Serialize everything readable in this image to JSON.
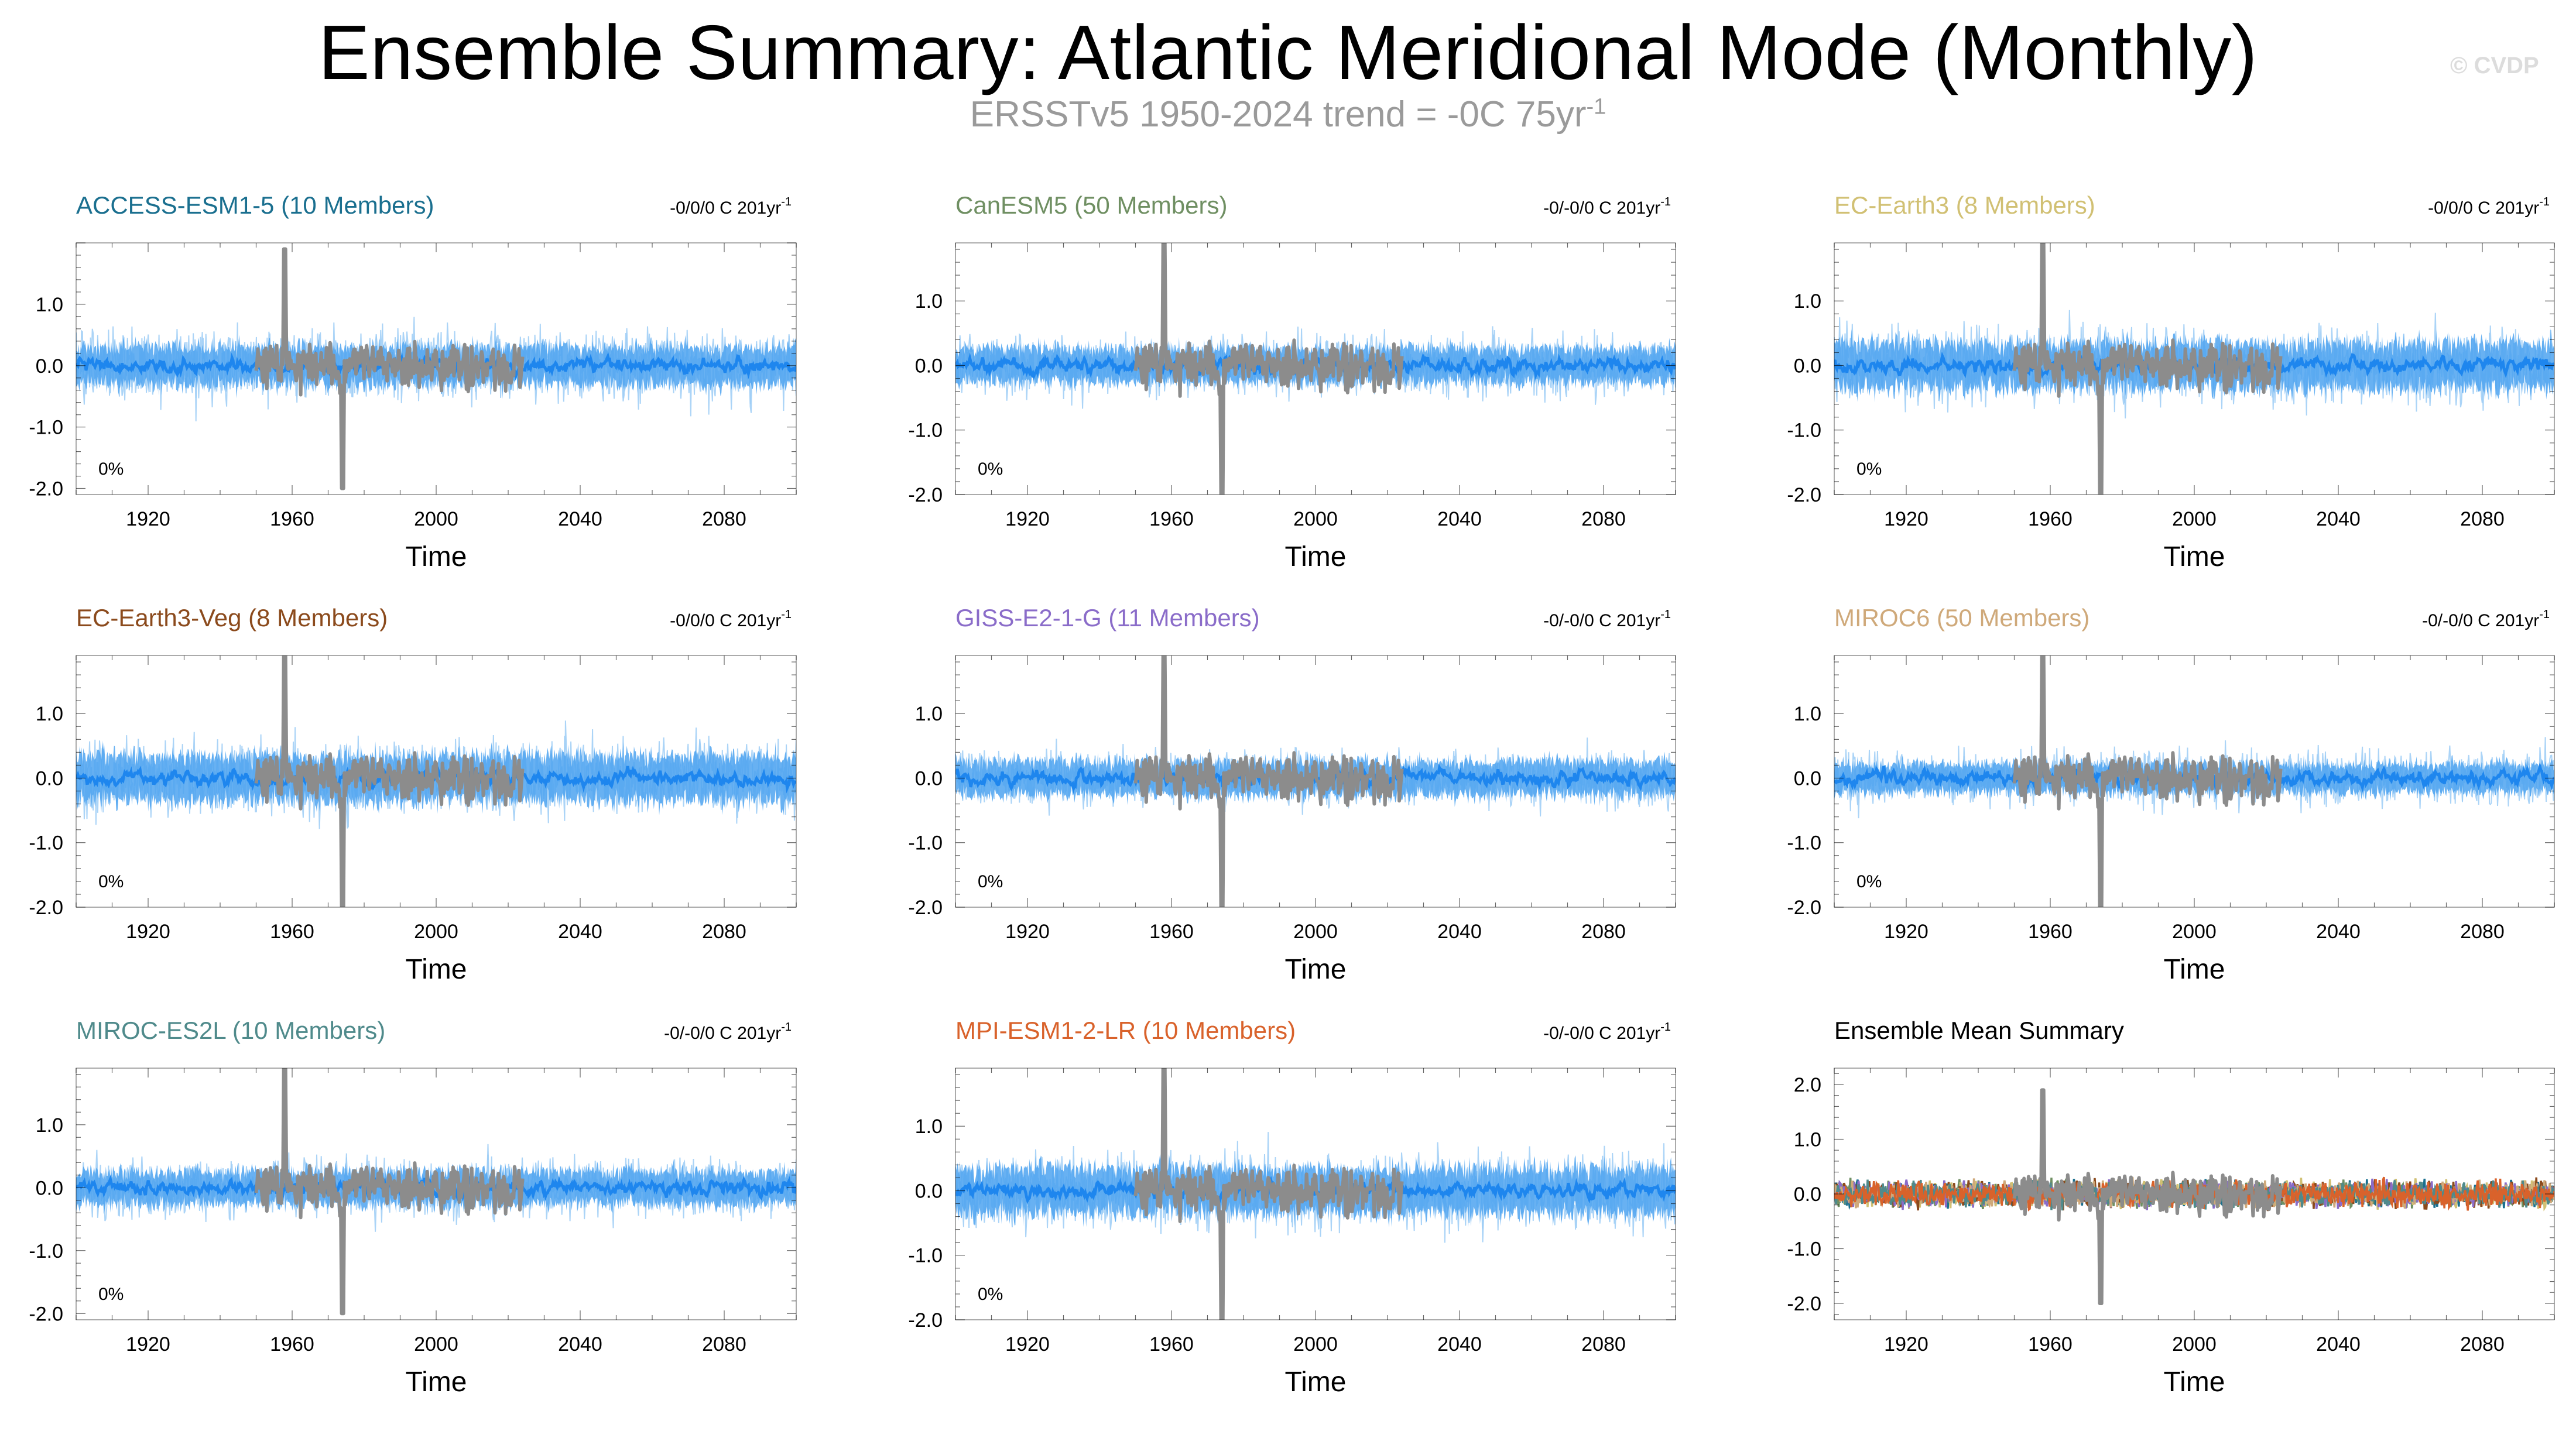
{
  "title": "Ensemble Summary: Atlantic Meridional Mode (Monthly)",
  "subtitle": {
    "text": "ERSSTv5 1950-2024 trend = -0C 75yr",
    "superscript": "-1"
  },
  "watermark": "© CVDP",
  "colors": {
    "member_spread": "#9ccdf6",
    "ensemble_band": "#4da3f0",
    "ensemble_mean": "#1e86ee",
    "observations": "#8c8c8c",
    "axis": "#000000"
  },
  "chart_data": [
    {
      "type": "line",
      "title": "ACCESS-ESM1-5 (10 Members)",
      "title_color": "#1a6f8f",
      "trend": "-0/0/0 C 201yr",
      "trend_sup": "-1",
      "percent_label": "0%",
      "xlabel": "Time",
      "xlim": [
        1900,
        2100
      ],
      "ylim": [
        -2.1,
        2.0
      ],
      "xticks": [
        "1920",
        "1960",
        "2000",
        "2040",
        "2080"
      ],
      "yticks": [
        "1.0",
        "0.0",
        "-1.0",
        "-2.0"
      ],
      "model_range": [
        1900,
        2100
      ],
      "obs_range": [
        1950,
        2024
      ],
      "obs_peak": 1.9,
      "obs_trough": -2.0,
      "spread_amplitude": 1.0,
      "band_amplitude": 0.35
    },
    {
      "type": "line",
      "title": "CanESM5 (50 Members)",
      "title_color": "#6f8f62",
      "trend": "-0/-0/0 C 201yr",
      "trend_sup": "-1",
      "percent_label": "0%",
      "xlabel": "Time",
      "xlim": [
        1900,
        2100
      ],
      "ylim": [
        -2.0,
        1.9
      ],
      "xticks": [
        "1920",
        "1960",
        "2000",
        "2040",
        "2080"
      ],
      "yticks": [
        "1.0",
        "0.0",
        "-1.0",
        "-2.0"
      ],
      "model_range": [
        1900,
        2100
      ],
      "obs_range": [
        1950,
        2024
      ],
      "obs_peak": 1.9,
      "obs_trough": -2.0,
      "spread_amplitude": 0.8,
      "band_amplitude": 0.3
    },
    {
      "type": "line",
      "title": "EC-Earth3 (8 Members)",
      "title_color": "#d1c073",
      "trend": "-0/0/0 C 201yr",
      "trend_sup": "-1",
      "percent_label": "0%",
      "xlabel": "Time",
      "xlim": [
        1900,
        2100
      ],
      "ylim": [
        -2.0,
        1.9
      ],
      "xticks": [
        "1920",
        "1960",
        "2000",
        "2040",
        "2080"
      ],
      "yticks": [
        "1.0",
        "0.0",
        "-1.0",
        "-2.0"
      ],
      "model_range": [
        1900,
        2100
      ],
      "obs_range": [
        1950,
        2024
      ],
      "obs_peak": 1.9,
      "obs_trough": -2.0,
      "spread_amplitude": 1.0,
      "band_amplitude": 0.4
    },
    {
      "type": "line",
      "title": "EC-Earth3-Veg (8 Members)",
      "title_color": "#8b4a1c",
      "trend": "-0/0/0 C 201yr",
      "trend_sup": "-1",
      "percent_label": "0%",
      "xlabel": "Time",
      "xlim": [
        1900,
        2100
      ],
      "ylim": [
        -2.0,
        1.9
      ],
      "xticks": [
        "1920",
        "1960",
        "2000",
        "2040",
        "2080"
      ],
      "yticks": [
        "1.0",
        "0.0",
        "-1.0",
        "-2.0"
      ],
      "model_range": [
        1900,
        2100
      ],
      "obs_range": [
        1950,
        2024
      ],
      "obs_peak": 1.9,
      "obs_trough": -2.0,
      "spread_amplitude": 1.0,
      "band_amplitude": 0.4
    },
    {
      "type": "line",
      "title": "GISS-E2-1-G (11 Members)",
      "title_color": "#8a6cc9",
      "trend": "-0/-0/0 C 201yr",
      "trend_sup": "-1",
      "percent_label": "0%",
      "xlabel": "Time",
      "xlim": [
        1900,
        2100
      ],
      "ylim": [
        -2.0,
        1.9
      ],
      "xticks": [
        "1920",
        "1960",
        "2000",
        "2040",
        "2080"
      ],
      "yticks": [
        "1.0",
        "0.0",
        "-1.0",
        "-2.0"
      ],
      "model_range": [
        1900,
        2100
      ],
      "obs_range": [
        1950,
        2024
      ],
      "obs_peak": 1.9,
      "obs_trough": -2.0,
      "spread_amplitude": 0.7,
      "band_amplitude": 0.3
    },
    {
      "type": "line",
      "title": "MIROC6 (50 Members)",
      "title_color": "#cfa97a",
      "trend": "-0/-0/0 C 201yr",
      "trend_sup": "-1",
      "percent_label": "0%",
      "xlabel": "Time",
      "xlim": [
        1900,
        2100
      ],
      "ylim": [
        -2.0,
        1.9
      ],
      "xticks": [
        "1920",
        "1960",
        "2000",
        "2040",
        "2080"
      ],
      "yticks": [
        "1.0",
        "0.0",
        "-1.0",
        "-2.0"
      ],
      "model_range": [
        1900,
        2100
      ],
      "obs_range": [
        1950,
        2024
      ],
      "obs_peak": 1.9,
      "obs_trough": -2.0,
      "spread_amplitude": 0.7,
      "band_amplitude": 0.25
    },
    {
      "type": "line",
      "title": "MIROC-ES2L (10 Members)",
      "title_color": "#4f8a8b",
      "trend": "-0/-0/0 C 201yr",
      "trend_sup": "-1",
      "percent_label": "0%",
      "xlabel": "Time",
      "xlim": [
        1900,
        2100
      ],
      "ylim": [
        -2.1,
        1.9
      ],
      "xticks": [
        "1920",
        "1960",
        "2000",
        "2040",
        "2080"
      ],
      "yticks": [
        "1.0",
        "0.0",
        "-1.0",
        "-2.0"
      ],
      "model_range": [
        1900,
        2100
      ],
      "obs_range": [
        1950,
        2024
      ],
      "obs_peak": 1.9,
      "obs_trough": -2.0,
      "spread_amplitude": 0.8,
      "band_amplitude": 0.3
    },
    {
      "type": "line",
      "title": "MPI-ESM1-2-LR (10 Members)",
      "title_color": "#d9622b",
      "trend": "-0/-0/0 C 201yr",
      "trend_sup": "-1",
      "percent_label": "0%",
      "xlabel": "Time",
      "xlim": [
        1900,
        2100
      ],
      "ylim": [
        -2.0,
        1.9
      ],
      "xticks": [
        "1920",
        "1960",
        "2000",
        "2040",
        "2080"
      ],
      "yticks": [
        "1.0",
        "0.0",
        "-1.0",
        "-2.0"
      ],
      "model_range": [
        1900,
        2100
      ],
      "obs_range": [
        1950,
        2024
      ],
      "obs_peak": 1.9,
      "obs_trough": -2.0,
      "spread_amplitude": 1.0,
      "band_amplitude": 0.4
    },
    {
      "type": "line",
      "title": "Ensemble Mean Summary",
      "title_color": "#000000",
      "trend": "",
      "trend_sup": "",
      "percent_label": "",
      "xlabel": "Time",
      "xlim": [
        1900,
        2100
      ],
      "ylim": [
        -2.3,
        2.3
      ],
      "xticks": [
        "1920",
        "1960",
        "2000",
        "2040",
        "2080"
      ],
      "yticks": [
        "2.0",
        "1.0",
        "0.0",
        "-1.0",
        "-2.0"
      ],
      "model_range": [
        1900,
        2100
      ],
      "obs_range": [
        1950,
        2024
      ],
      "obs_peak": 1.9,
      "obs_trough": -2.0,
      "series_colors": [
        "#1a6f8f",
        "#6f8f62",
        "#d1c073",
        "#8b4a1c",
        "#8a6cc9",
        "#cfa97a",
        "#4f8a8b",
        "#d9622b"
      ]
    }
  ]
}
